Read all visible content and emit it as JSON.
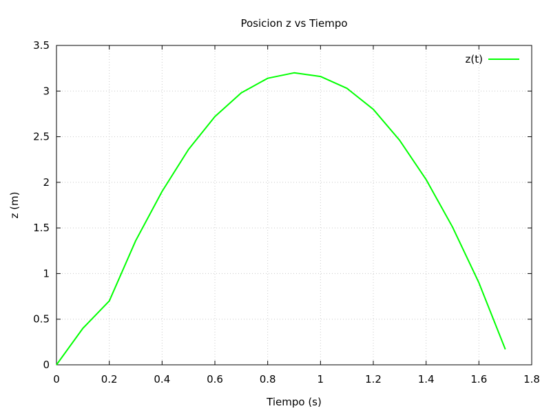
{
  "chart_data": {
    "type": "line",
    "title": "Posicion z vs Tiempo",
    "xlabel": "Tiempo (s)",
    "ylabel": "z (m)",
    "xlim": [
      0,
      1.8
    ],
    "ylim": [
      0,
      3.5
    ],
    "xticks": [
      "0",
      "0.2",
      "0.4",
      "0.6",
      "0.8",
      "1",
      "1.2",
      "1.4",
      "1.6",
      "1.8"
    ],
    "yticks": [
      "0",
      "0.5",
      "1",
      "1.5",
      "2",
      "2.5",
      "3",
      "3.5"
    ],
    "grid": true,
    "legend": "top-right",
    "series": [
      {
        "name": "z(t)",
        "color": "#00ff00",
        "x": [
          0,
          0.1,
          0.2,
          0.3,
          0.4,
          0.5,
          0.6,
          0.7,
          0.8,
          0.9,
          1.0,
          1.1,
          1.2,
          1.3,
          1.4,
          1.5,
          1.6,
          1.7
        ],
        "y": [
          0.0,
          0.4,
          0.7,
          1.36,
          1.9,
          2.36,
          2.72,
          2.98,
          3.14,
          3.2,
          3.16,
          3.03,
          2.8,
          2.46,
          2.03,
          1.51,
          0.9,
          0.17
        ]
      }
    ]
  }
}
